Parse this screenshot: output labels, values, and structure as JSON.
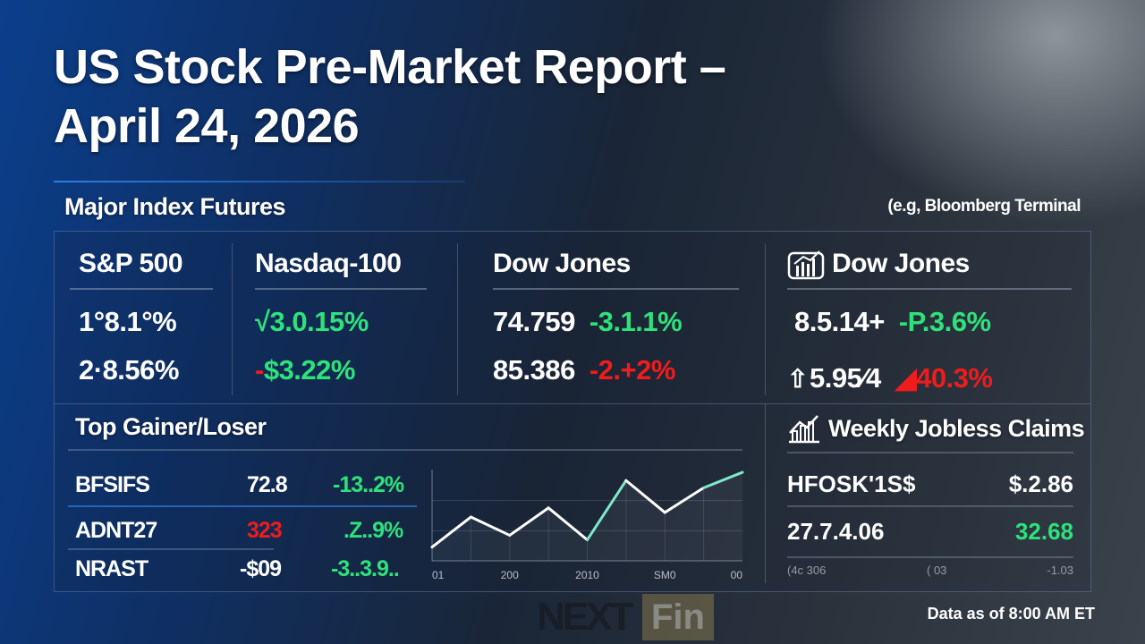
{
  "title_line1": "US Stock Pre-Market Report –",
  "title_line2": "April 24, 2026",
  "futures": {
    "heading": "Major Index Futures",
    "note": "(e.g, Bloomberg Terminal",
    "columns": [
      {
        "name": "S&P 500",
        "rows": [
          [
            "1°8.1°%"
          ],
          [
            "2·8.56%"
          ]
        ]
      },
      {
        "name": "Nasdaq-100",
        "rows": [
          [
            "√3.0.15%"
          ],
          [
            "-",
            "$3.22%"
          ]
        ]
      },
      {
        "name": "Dow Jones",
        "rows": [
          [
            "74.759",
            "-3.1.1%"
          ],
          [
            "85.386",
            "-2.+2%"
          ]
        ]
      },
      {
        "name": "Dow Jones",
        "icon": "bar-chart-icon",
        "rows": [
          [
            "8.5.14+",
            "-P.3.6%"
          ],
          [
            "5.95⁄4",
            "◢40.3%"
          ]
        ]
      }
    ]
  },
  "gainers": {
    "heading": "Top Gainer/Loser",
    "rows": [
      {
        "ticker": "BFSIFS",
        "price": "72.8",
        "change": "-13..2%"
      },
      {
        "ticker": "ADNT27",
        "price": "323",
        "change": ".Z..9%"
      },
      {
        "ticker": "NRAST",
        "price": "-$09",
        "change": "-3..3.9.."
      }
    ]
  },
  "chart_data": {
    "type": "line",
    "x_tick_labels": [
      "01",
      "200",
      "2010",
      "SM0",
      "00"
    ],
    "values": [
      15,
      48,
      28,
      58,
      23,
      88,
      53,
      80,
      97
    ],
    "colors": {
      "line": "#ffffff",
      "highlight": "#7fe8c8"
    },
    "grid": true
  },
  "jobless": {
    "heading": "Weekly Jobless Claims",
    "rows": [
      {
        "label": "HFOSK'1S$",
        "value": "$.2.86"
      },
      {
        "label": "27.7.4.06",
        "value": "32.68"
      },
      {
        "label": "(4c 306",
        "value": "-1.03",
        "mid": "( 03"
      }
    ]
  },
  "logo": {
    "text1": "NEXT",
    "text2": "Fin"
  },
  "footer": "Data as of 8:00 AM ET",
  "colors": {
    "positive": "#2ee27a",
    "negative": "#f01c1c",
    "accent": "#2f7ae0"
  }
}
